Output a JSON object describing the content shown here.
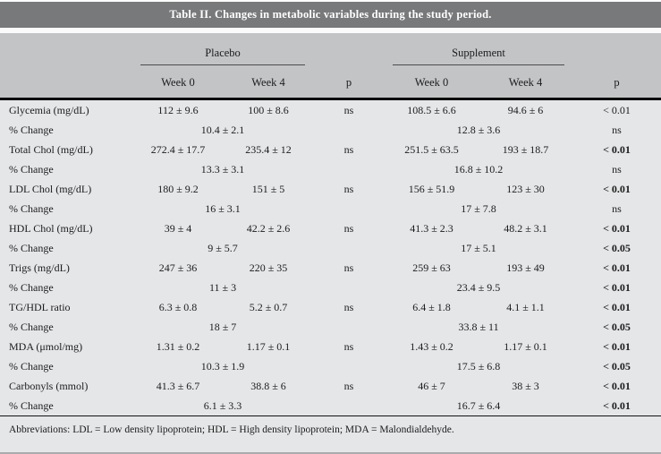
{
  "title": "Table II. Changes in metabolic variables during the study period.",
  "header": {
    "groups": [
      {
        "label": "Placebo"
      },
      {
        "label": "Supplement"
      }
    ],
    "subcols": [
      "Week 0",
      "Week 4",
      "p"
    ]
  },
  "rows": [
    {
      "type": "main",
      "label": "Glycemia (mg/dL)",
      "placebo_w0": "112 ± 9.6",
      "placebo_w4": "100 ± 8.6",
      "placebo_p": "ns",
      "supp_w0": "108.5 ± 6.6",
      "supp_w4": "94.6 ± 6",
      "supp_p": "< 0.01",
      "supp_p_bold": false
    },
    {
      "type": "change",
      "label": "% Change",
      "placebo_span": "10.4 ± 2.1",
      "placebo_p": "",
      "supp_span": "12.8 ± 3.6",
      "supp_p": "ns",
      "supp_p_bold": false
    },
    {
      "type": "main",
      "label": "Total Chol (mg/dL)",
      "placebo_w0": "272.4 ± 17.7",
      "placebo_w4": "235.4 ± 12",
      "placebo_p": "ns",
      "supp_w0": "251.5 ± 63.5",
      "supp_w4": "193 ± 18.7",
      "supp_p": "< 0.01",
      "supp_p_bold": true
    },
    {
      "type": "change",
      "label": "% Change",
      "placebo_span": "13.3 ± 3.1",
      "placebo_p": "",
      "supp_span": "16.8 ± 10.2",
      "supp_p": "ns",
      "supp_p_bold": false
    },
    {
      "type": "main",
      "label": "LDL Chol (mg/dL)",
      "placebo_w0": "180 ± 9.2",
      "placebo_w4": "151 ± 5",
      "placebo_p": "ns",
      "supp_w0": "156 ± 51.9",
      "supp_w4": "123 ± 30",
      "supp_p": "< 0.01",
      "supp_p_bold": true
    },
    {
      "type": "change",
      "label": "% Change",
      "placebo_span": "16 ± 3.1",
      "placebo_p": "",
      "supp_span": "17 ± 7.8",
      "supp_p": "ns",
      "supp_p_bold": false
    },
    {
      "type": "main",
      "label": "HDL Chol (mg/dL)",
      "placebo_w0": "39 ± 4",
      "placebo_w4": "42.2 ± 2.6",
      "placebo_p": "ns",
      "supp_w0": "41.3 ± 2.3",
      "supp_w4": "48.2 ± 3.1",
      "supp_p": "< 0.01",
      "supp_p_bold": true
    },
    {
      "type": "change",
      "label": "% Change",
      "placebo_span": "9 ± 5.7",
      "placebo_p": "",
      "supp_span": "17 ± 5.1",
      "supp_p": "< 0.05",
      "supp_p_bold": true
    },
    {
      "type": "main",
      "label": "Trigs (mg/dL)",
      "placebo_w0": "247 ± 36",
      "placebo_w4": "220 ± 35",
      "placebo_p": "ns",
      "supp_w0": "259 ± 63",
      "supp_w4": "193 ± 49",
      "supp_p": "< 0.01",
      "supp_p_bold": true
    },
    {
      "type": "change",
      "label": "% Change",
      "placebo_span": "11 ± 3",
      "placebo_p": "",
      "supp_span": "23.4 ± 9.5",
      "supp_p": "< 0.01",
      "supp_p_bold": true
    },
    {
      "type": "main",
      "label": "TG/HDL ratio",
      "placebo_w0": "6.3 ± 0.8",
      "placebo_w4": "5.2 ± 0.7",
      "placebo_p": "ns",
      "supp_w0": "6.4 ± 1.8",
      "supp_w4": "4.1 ± 1.1",
      "supp_p": "< 0.01",
      "supp_p_bold": true
    },
    {
      "type": "change",
      "label": "% Change",
      "placebo_span": "18 ± 7",
      "placebo_p": "",
      "supp_span": "33.8 ± 11",
      "supp_p": "< 0.05",
      "supp_p_bold": true
    },
    {
      "type": "main",
      "label": "MDA (μmol/mg)",
      "placebo_w0": "1.31 ± 0.2",
      "placebo_w4": "1.17 ± 0.1",
      "placebo_p": "ns",
      "supp_w0": "1.43 ± 0.2",
      "supp_w4": "1.17 ± 0.1",
      "supp_p": "< 0.01",
      "supp_p_bold": true
    },
    {
      "type": "change",
      "label": "% Change",
      "placebo_span": "10.3 ± 1.9",
      "placebo_p": "",
      "supp_span": "17.5 ± 6.8",
      "supp_p": "< 0.05",
      "supp_p_bold": true
    },
    {
      "type": "main",
      "label": "Carbonyls (mmol)",
      "placebo_w0": "41.3 ± 6.7",
      "placebo_w4": "38.8 ± 6",
      "placebo_p": "ns",
      "supp_w0": "46 ± 7",
      "supp_w4": "38 ± 3",
      "supp_p": "< 0.01",
      "supp_p_bold": true
    },
    {
      "type": "change",
      "label": "% Change",
      "placebo_span": "6.1 ± 3.3",
      "placebo_p": "",
      "supp_span": "16.7 ± 6.4",
      "supp_p": "< 0.01",
      "supp_p_bold": true
    }
  ],
  "footnote": "Abbreviations: LDL = Low density lipoprotein; HDL = High density lipoprotein; MDA = Malondialdehyde.",
  "colors": {
    "title_bar_bg": "#78797b",
    "title_text": "#ffffff",
    "header_bg": "#c3c4c6",
    "body_bg": "#e5e6e8",
    "rule": "#0c0c0c",
    "text": "#1c1c1c"
  }
}
